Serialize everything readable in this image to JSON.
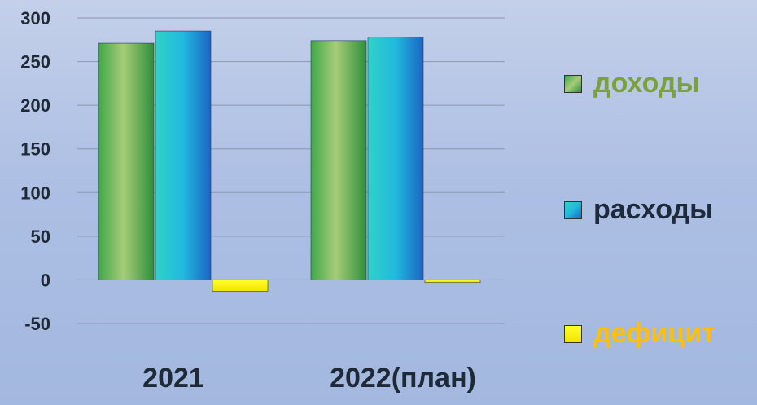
{
  "chart_data": {
    "type": "bar",
    "title": "",
    "xlabel": "",
    "ylabel": "",
    "categories": [
      "2021",
      "2022(план)"
    ],
    "series": [
      {
        "name": "доходы",
        "values": [
          271,
          274
        ]
      },
      {
        "name": "расходы",
        "values": [
          285,
          278
        ]
      },
      {
        "name": "дефицит",
        "values": [
          -13,
          -3
        ]
      }
    ],
    "ylim": [
      -50,
      300
    ],
    "yticks": [
      300,
      250,
      200,
      150,
      100,
      50,
      0,
      -50
    ],
    "grid": true,
    "legend_position": "right",
    "colors": {
      "доходы": "#4caf50",
      "расходы": "#1e9fd8",
      "дефицит": "#ffff1a"
    },
    "legend_text_colors": {
      "доходы": "#7aa23a",
      "расходы": "#1c2a3c",
      "дефицит": "#ffc000"
    }
  }
}
